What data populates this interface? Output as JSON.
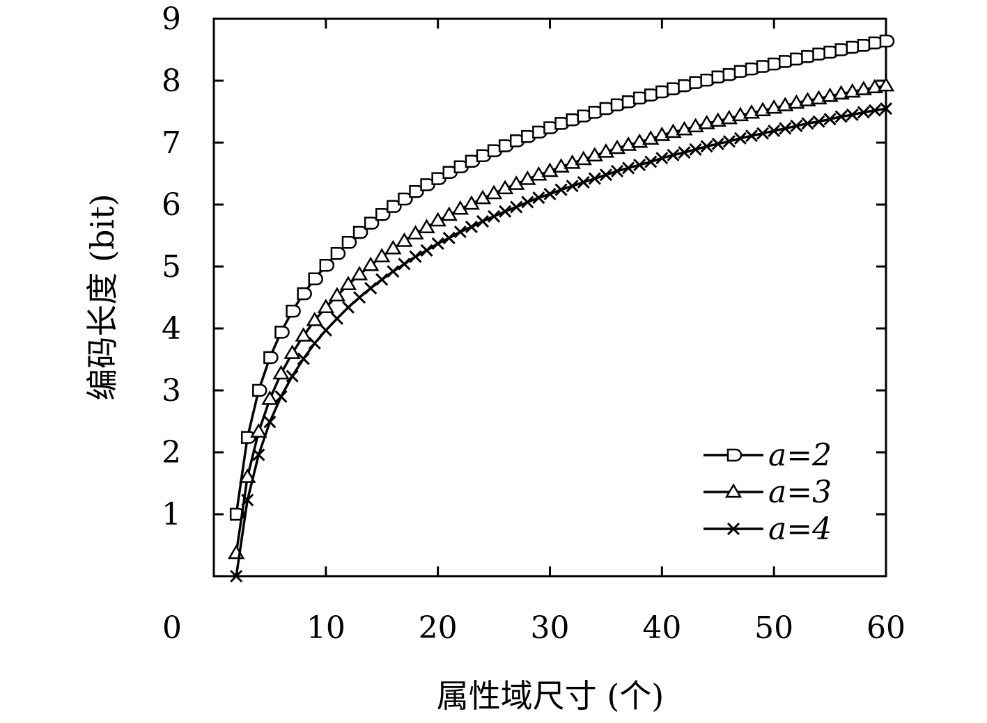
{
  "chart_data": {
    "type": "line",
    "title": "",
    "xlabel": "属性域尺寸 (个)",
    "ylabel": "编码长度 (bit)",
    "xlim": [
      0,
      60
    ],
    "ylim": [
      0,
      9
    ],
    "x_ticks": [
      "0",
      "10",
      "20",
      "30",
      "40",
      "50",
      "60"
    ],
    "y_ticks": [
      "1",
      "2",
      "3",
      "4",
      "5",
      "6",
      "7",
      "8",
      "9"
    ],
    "grid": false,
    "legend_position": "bottom-right",
    "line_color": "#000000",
    "x": [
      2,
      3,
      4,
      5,
      6,
      7,
      8,
      9,
      10,
      11,
      12,
      13,
      14,
      15,
      16,
      17,
      18,
      19,
      20,
      21,
      22,
      23,
      24,
      25,
      26,
      27,
      28,
      29,
      30,
      31,
      32,
      33,
      34,
      35,
      36,
      37,
      38,
      39,
      40,
      41,
      42,
      43,
      44,
      45,
      46,
      47,
      48,
      49,
      50,
      51,
      52,
      53,
      54,
      55,
      56,
      57,
      58,
      59,
      60
    ],
    "series": [
      {
        "name": "a=2",
        "marker": "square-circle",
        "values": [
          1.0,
          2.24,
          3.0,
          3.53,
          3.94,
          4.28,
          4.56,
          4.8,
          5.02,
          5.21,
          5.39,
          5.55,
          5.7,
          5.84,
          5.97,
          6.09,
          6.21,
          6.32,
          6.42,
          6.52,
          6.61,
          6.7,
          6.79,
          6.87,
          6.95,
          7.03,
          7.1,
          7.17,
          7.24,
          7.31,
          7.37,
          7.43,
          7.49,
          7.55,
          7.61,
          7.66,
          7.72,
          7.77,
          7.82,
          7.87,
          7.92,
          7.97,
          8.01,
          8.06,
          8.1,
          8.15,
          8.19,
          8.23,
          8.27,
          8.31,
          8.35,
          8.39,
          8.43,
          8.46,
          8.5,
          8.54,
          8.57,
          8.61,
          8.64
        ]
      },
      {
        "name": "a=3",
        "marker": "triangle",
        "values": [
          0.37,
          1.6,
          2.33,
          2.86,
          3.27,
          3.6,
          3.88,
          4.13,
          4.34,
          4.53,
          4.71,
          4.87,
          5.02,
          5.16,
          5.29,
          5.41,
          5.53,
          5.63,
          5.74,
          5.83,
          5.93,
          6.01,
          6.1,
          6.18,
          6.26,
          6.33,
          6.41,
          6.48,
          6.54,
          6.61,
          6.67,
          6.73,
          6.79,
          6.85,
          6.91,
          6.96,
          7.01,
          7.06,
          7.12,
          7.17,
          7.21,
          7.26,
          7.31,
          7.35,
          7.39,
          7.44,
          7.48,
          7.52,
          7.56,
          7.6,
          7.64,
          7.68,
          7.71,
          7.75,
          7.79,
          7.82,
          7.86,
          7.89,
          7.92
        ]
      },
      {
        "name": "a=4",
        "marker": "x",
        "values": [
          0.0,
          1.23,
          1.96,
          2.49,
          2.9,
          3.23,
          3.51,
          3.76,
          3.97,
          4.16,
          4.34,
          4.5,
          4.65,
          4.79,
          4.92,
          5.04,
          5.16,
          5.26,
          5.37,
          5.46,
          5.56,
          5.64,
          5.73,
          5.81,
          5.89,
          5.96,
          6.04,
          6.11,
          6.17,
          6.24,
          6.3,
          6.36,
          6.42,
          6.48,
          6.54,
          6.59,
          6.64,
          6.69,
          6.75,
          6.8,
          6.84,
          6.89,
          6.94,
          6.98,
          7.02,
          7.07,
          7.11,
          7.15,
          7.19,
          7.23,
          7.27,
          7.31,
          7.34,
          7.38,
          7.42,
          7.45,
          7.49,
          7.52,
          7.55
        ]
      }
    ]
  }
}
